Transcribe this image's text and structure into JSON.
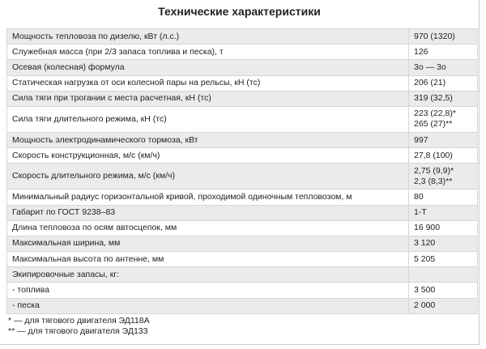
{
  "header": {
    "title": "Технические характеристики"
  },
  "table": {
    "rows": [
      [
        "Мощность тепловоза по дизелю, кВт (л.с.)",
        "970 (1320)"
      ],
      [
        "Служебная масса (при 2/3 запаса топлива и песка), т",
        "126"
      ],
      [
        "Осевая (колесная) формула",
        "3о — 3о"
      ],
      [
        "Статическая нагрузка от оси колесной пары на рельсы, кН (тс)",
        "206 (21)"
      ],
      [
        "Сила тяги при трогании с места расчетная, кН (тс)",
        "319 (32,5)"
      ],
      [
        "Сила тяги длительного режима, кН (тс)",
        [
          "223 (22,8)*",
          "265 (27)**"
        ]
      ],
      [
        "Мощность электродинамического тормоза, кВт",
        "997"
      ],
      [
        "Скорость конструкционная, м/с (км/ч)",
        "27,8 (100)"
      ],
      [
        "Скорость длительного режима, м/с (км/ч)",
        [
          "2,75 (9,9)*",
          "2,3 (8,3)**"
        ]
      ],
      [
        "Минимальный радиус горизонтальной кривой, проходимой одиночным тепловозом, м",
        "80"
      ],
      [
        "Габарит по ГОСТ 9238–83",
        "1-Т"
      ],
      [
        "Длина тепловоза по осям автосцепок, мм",
        "16 900"
      ],
      [
        "Максимальная ширина, мм",
        "3 120"
      ],
      [
        "Максимальная высота по антенне, мм",
        "5 205"
      ],
      [
        "Экипировочные запасы, кг:"
      ],
      [
        "- топлива",
        "3 500"
      ],
      [
        "- песка",
        "2 000"
      ]
    ]
  },
  "footnotes": [
    "* — для тягового двигателя ЭД118А",
    "** — для тягового двигателя ЭД133"
  ]
}
